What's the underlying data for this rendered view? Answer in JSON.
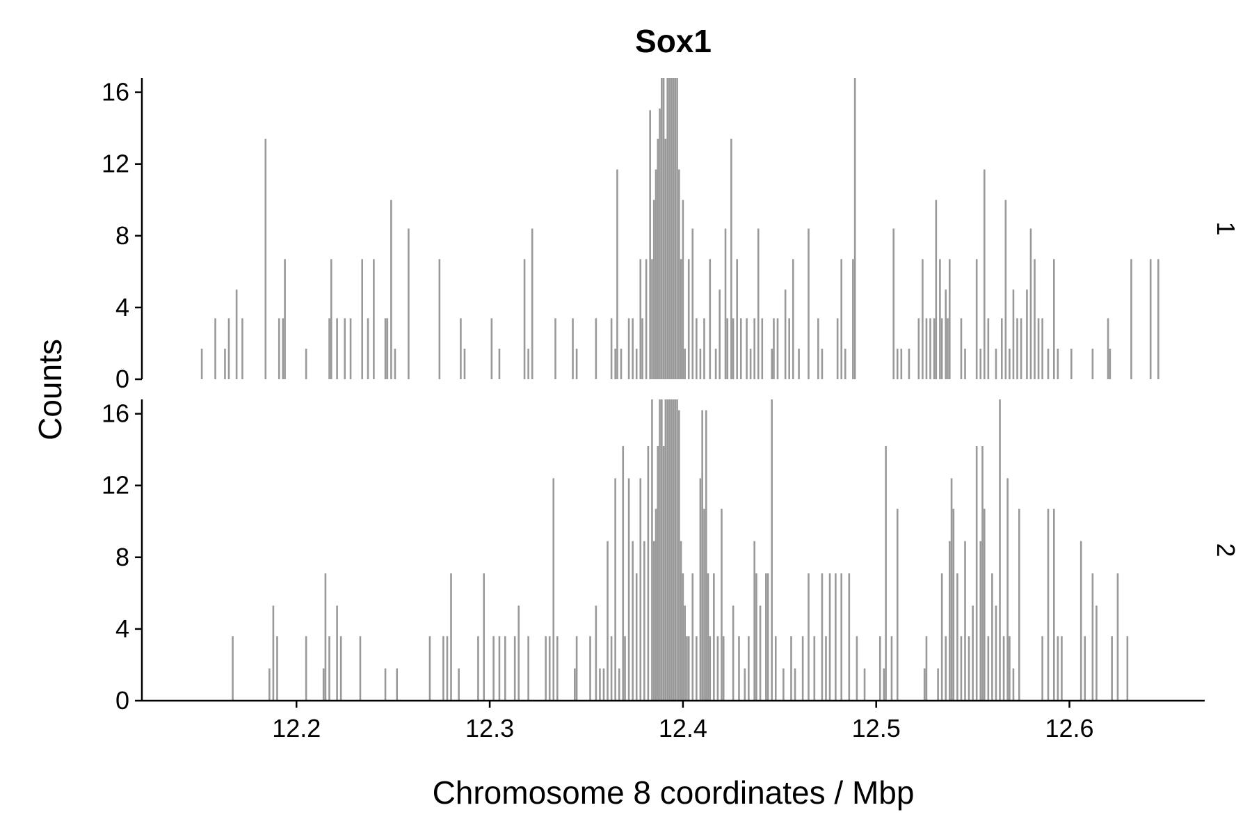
{
  "chart_data": {
    "type": "bar",
    "title": "Sox1",
    "xlabel": "Chromosome 8 coordinates / Mbp",
    "ylabel": "Counts",
    "xlim": [
      12.12,
      12.67
    ],
    "ylim": [
      0,
      16.8
    ],
    "x_ticks": [
      "12.2",
      "12.3",
      "12.4",
      "12.5",
      "12.6"
    ],
    "x_tick_values": [
      12.2,
      12.3,
      12.4,
      12.5,
      12.6
    ],
    "y_ticks": [
      "0",
      "4",
      "8",
      "12",
      "16"
    ],
    "y_tick_values": [
      0,
      4,
      8,
      12,
      16
    ],
    "bar_color": "#999999",
    "grid": false,
    "facets": [
      {
        "label": "1",
        "points": [
          [
            12.151,
            1.7
          ],
          [
            12.158,
            3.4
          ],
          [
            12.163,
            1.7
          ],
          [
            12.165,
            3.4
          ],
          [
            12.169,
            5.0
          ],
          [
            12.172,
            3.4
          ],
          [
            12.184,
            13.4
          ],
          [
            12.191,
            3.4
          ],
          [
            12.193,
            3.4
          ],
          [
            12.194,
            6.7
          ],
          [
            12.205,
            1.7
          ],
          [
            12.217,
            3.4
          ],
          [
            12.218,
            6.7
          ],
          [
            12.221,
            3.4
          ],
          [
            12.225,
            3.4
          ],
          [
            12.228,
            3.4
          ],
          [
            12.234,
            6.7
          ],
          [
            12.237,
            3.4
          ],
          [
            12.24,
            6.7
          ],
          [
            12.246,
            3.4
          ],
          [
            12.247,
            3.4
          ],
          [
            12.249,
            10.0
          ],
          [
            12.251,
            1.7
          ],
          [
            12.258,
            8.4
          ],
          [
            12.274,
            6.7
          ],
          [
            12.285,
            3.4
          ],
          [
            12.287,
            1.7
          ],
          [
            12.301,
            3.4
          ],
          [
            12.305,
            1.7
          ],
          [
            12.318,
            6.7
          ],
          [
            12.32,
            1.7
          ],
          [
            12.322,
            8.4
          ],
          [
            12.334,
            3.4
          ],
          [
            12.343,
            3.4
          ],
          [
            12.345,
            1.7
          ],
          [
            12.355,
            3.4
          ],
          [
            12.363,
            3.4
          ],
          [
            12.365,
            1.7
          ],
          [
            12.366,
            11.7
          ],
          [
            12.368,
            1.7
          ],
          [
            12.372,
            3.4
          ],
          [
            12.374,
            3.4
          ],
          [
            12.376,
            1.7
          ],
          [
            12.378,
            6.7
          ],
          [
            12.379,
            3.4
          ],
          [
            12.381,
            6.7
          ],
          [
            12.383,
            15.0
          ],
          [
            12.384,
            6.7
          ],
          [
            12.385,
            10.0
          ],
          [
            12.386,
            11.7
          ],
          [
            12.387,
            13.4
          ],
          [
            12.388,
            15.1
          ],
          [
            12.389,
            16.8
          ],
          [
            12.39,
            16.8
          ],
          [
            12.391,
            13.4
          ],
          [
            12.392,
            16.8
          ],
          [
            12.393,
            16.8
          ],
          [
            12.394,
            16.8
          ],
          [
            12.395,
            16.8
          ],
          [
            12.396,
            16.8
          ],
          [
            12.397,
            16.8
          ],
          [
            12.398,
            11.7
          ],
          [
            12.399,
            6.7
          ],
          [
            12.4,
            10.0
          ],
          [
            12.401,
            1.7
          ],
          [
            12.403,
            6.7
          ],
          [
            12.405,
            8.4
          ],
          [
            12.407,
            3.4
          ],
          [
            12.409,
            1.7
          ],
          [
            12.411,
            3.4
          ],
          [
            12.414,
            6.7
          ],
          [
            12.417,
            1.7
          ],
          [
            12.419,
            5.0
          ],
          [
            12.422,
            8.4
          ],
          [
            12.423,
            3.4
          ],
          [
            12.425,
            13.4
          ],
          [
            12.426,
            3.4
          ],
          [
            12.428,
            6.7
          ],
          [
            12.43,
            3.4
          ],
          [
            12.433,
            3.4
          ],
          [
            12.435,
            1.7
          ],
          [
            12.437,
            3.4
          ],
          [
            12.439,
            8.4
          ],
          [
            12.441,
            3.4
          ],
          [
            12.446,
            1.7
          ],
          [
            12.447,
            3.4
          ],
          [
            12.449,
            3.4
          ],
          [
            12.453,
            5.0
          ],
          [
            12.455,
            3.4
          ],
          [
            12.457,
            6.7
          ],
          [
            12.46,
            1.7
          ],
          [
            12.465,
            8.4
          ],
          [
            12.47,
            3.4
          ],
          [
            12.472,
            1.7
          ],
          [
            12.48,
            3.4
          ],
          [
            12.482,
            6.7
          ],
          [
            12.484,
            1.7
          ],
          [
            12.488,
            6.7
          ],
          [
            12.489,
            16.8
          ],
          [
            12.509,
            8.4
          ],
          [
            12.511,
            1.7
          ],
          [
            12.513,
            1.7
          ],
          [
            12.517,
            1.7
          ],
          [
            12.522,
            3.4
          ],
          [
            12.524,
            6.7
          ],
          [
            12.526,
            3.4
          ],
          [
            12.528,
            3.4
          ],
          [
            12.53,
            3.4
          ],
          [
            12.531,
            10.0
          ],
          [
            12.533,
            6.7
          ],
          [
            12.534,
            3.4
          ],
          [
            12.536,
            5.0
          ],
          [
            12.537,
            3.4
          ],
          [
            12.538,
            6.7
          ],
          [
            12.544,
            3.4
          ],
          [
            12.546,
            1.7
          ],
          [
            12.552,
            6.7
          ],
          [
            12.554,
            1.7
          ],
          [
            12.556,
            11.7
          ],
          [
            12.558,
            3.4
          ],
          [
            12.562,
            1.7
          ],
          [
            12.565,
            3.4
          ],
          [
            12.567,
            10.0
          ],
          [
            12.569,
            1.7
          ],
          [
            12.571,
            5.0
          ],
          [
            12.573,
            3.4
          ],
          [
            12.575,
            3.4
          ],
          [
            12.578,
            5.0
          ],
          [
            12.58,
            8.4
          ],
          [
            12.582,
            6.7
          ],
          [
            12.584,
            3.4
          ],
          [
            12.586,
            3.4
          ],
          [
            12.589,
            1.7
          ],
          [
            12.592,
            6.7
          ],
          [
            12.594,
            1.7
          ],
          [
            12.601,
            1.7
          ],
          [
            12.612,
            1.7
          ],
          [
            12.62,
            3.4
          ],
          [
            12.621,
            1.7
          ],
          [
            12.632,
            6.7
          ],
          [
            12.642,
            6.7
          ],
          [
            12.646,
            6.7
          ]
        ]
      },
      {
        "label": "2",
        "points": [
          [
            12.167,
            3.6
          ],
          [
            12.186,
            1.8
          ],
          [
            12.188,
            5.3
          ],
          [
            12.19,
            3.6
          ],
          [
            12.205,
            3.6
          ],
          [
            12.214,
            1.8
          ],
          [
            12.215,
            7.1
          ],
          [
            12.217,
            3.6
          ],
          [
            12.221,
            5.3
          ],
          [
            12.223,
            3.6
          ],
          [
            12.233,
            3.6
          ],
          [
            12.246,
            1.8
          ],
          [
            12.252,
            1.8
          ],
          [
            12.269,
            3.6
          ],
          [
            12.276,
            3.6
          ],
          [
            12.278,
            3.6
          ],
          [
            12.28,
            7.1
          ],
          [
            12.284,
            1.8
          ],
          [
            12.294,
            3.6
          ],
          [
            12.297,
            7.1
          ],
          [
            12.302,
            3.6
          ],
          [
            12.305,
            3.6
          ],
          [
            12.308,
            3.6
          ],
          [
            12.313,
            3.6
          ],
          [
            12.315,
            5.3
          ],
          [
            12.32,
            3.6
          ],
          [
            12.329,
            3.6
          ],
          [
            12.331,
            3.6
          ],
          [
            12.333,
            12.4
          ],
          [
            12.335,
            3.6
          ],
          [
            12.344,
            1.8
          ],
          [
            12.345,
            3.6
          ],
          [
            12.352,
            3.6
          ],
          [
            12.355,
            5.3
          ],
          [
            12.357,
            1.8
          ],
          [
            12.359,
            1.8
          ],
          [
            12.361,
            8.9
          ],
          [
            12.363,
            3.6
          ],
          [
            12.365,
            12.4
          ],
          [
            12.367,
            1.8
          ],
          [
            12.369,
            14.2
          ],
          [
            12.37,
            3.6
          ],
          [
            12.372,
            12.4
          ],
          [
            12.374,
            8.9
          ],
          [
            12.376,
            7.1
          ],
          [
            12.378,
            12.4
          ],
          [
            12.38,
            8.9
          ],
          [
            12.382,
            14.2
          ],
          [
            12.384,
            16.8
          ],
          [
            12.385,
            8.9
          ],
          [
            12.386,
            10.7
          ],
          [
            12.387,
            14.2
          ],
          [
            12.388,
            16.8
          ],
          [
            12.389,
            16.8
          ],
          [
            12.39,
            14.2
          ],
          [
            12.391,
            16.8
          ],
          [
            12.392,
            16.8
          ],
          [
            12.393,
            16.8
          ],
          [
            12.394,
            16.8
          ],
          [
            12.395,
            16.8
          ],
          [
            12.396,
            16.8
          ],
          [
            12.397,
            16.8
          ],
          [
            12.398,
            16.2
          ],
          [
            12.399,
            8.9
          ],
          [
            12.4,
            7.1
          ],
          [
            12.401,
            5.3
          ],
          [
            12.402,
            3.6
          ],
          [
            12.403,
            3.6
          ],
          [
            12.405,
            7.1
          ],
          [
            12.407,
            3.6
          ],
          [
            12.409,
            12.4
          ],
          [
            12.41,
            16.2
          ],
          [
            12.411,
            10.7
          ],
          [
            12.412,
            16.2
          ],
          [
            12.413,
            7.1
          ],
          [
            12.414,
            3.6
          ],
          [
            12.416,
            7.1
          ],
          [
            12.418,
            3.6
          ],
          [
            12.42,
            10.7
          ],
          [
            12.421,
            3.6
          ],
          [
            12.426,
            5.3
          ],
          [
            12.429,
            3.6
          ],
          [
            12.432,
            1.8
          ],
          [
            12.434,
            3.6
          ],
          [
            12.437,
            8.9
          ],
          [
            12.438,
            7.1
          ],
          [
            12.44,
            5.3
          ],
          [
            12.443,
            7.1
          ],
          [
            12.444,
            7.1
          ],
          [
            12.446,
            16.8
          ],
          [
            12.448,
            3.6
          ],
          [
            12.452,
            1.8
          ],
          [
            12.456,
            3.6
          ],
          [
            12.458,
            1.8
          ],
          [
            12.462,
            3.6
          ],
          [
            12.465,
            7.1
          ],
          [
            12.468,
            3.6
          ],
          [
            12.472,
            7.1
          ],
          [
            12.474,
            3.6
          ],
          [
            12.476,
            7.1
          ],
          [
            12.479,
            7.1
          ],
          [
            12.482,
            7.1
          ],
          [
            12.486,
            7.1
          ],
          [
            12.49,
            3.6
          ],
          [
            12.494,
            1.8
          ],
          [
            12.502,
            3.6
          ],
          [
            12.504,
            1.8
          ],
          [
            12.505,
            14.2
          ],
          [
            12.508,
            3.6
          ],
          [
            12.511,
            10.7
          ],
          [
            12.525,
            1.8
          ],
          [
            12.526,
            3.6
          ],
          [
            12.532,
            1.8
          ],
          [
            12.534,
            7.1
          ],
          [
            12.536,
            3.6
          ],
          [
            12.538,
            8.9
          ],
          [
            12.539,
            12.4
          ],
          [
            12.54,
            10.7
          ],
          [
            12.542,
            7.1
          ],
          [
            12.544,
            3.6
          ],
          [
            12.546,
            8.9
          ],
          [
            12.548,
            3.6
          ],
          [
            12.55,
            5.3
          ],
          [
            12.552,
            14.2
          ],
          [
            12.554,
            8.9
          ],
          [
            12.555,
            14.2
          ],
          [
            12.556,
            10.7
          ],
          [
            12.558,
            3.6
          ],
          [
            12.56,
            7.1
          ],
          [
            12.562,
            5.3
          ],
          [
            12.564,
            16.8
          ],
          [
            12.566,
            3.6
          ],
          [
            12.568,
            12.4
          ],
          [
            12.569,
            3.6
          ],
          [
            12.571,
            1.8
          ],
          [
            12.574,
            10.7
          ],
          [
            12.586,
            3.6
          ],
          [
            12.589,
            10.7
          ],
          [
            12.592,
            10.7
          ],
          [
            12.594,
            3.6
          ],
          [
            12.596,
            3.6
          ],
          [
            12.606,
            8.9
          ],
          [
            12.608,
            3.6
          ],
          [
            12.612,
            7.1
          ],
          [
            12.614,
            5.3
          ],
          [
            12.622,
            3.6
          ],
          [
            12.625,
            7.1
          ],
          [
            12.63,
            3.6
          ]
        ]
      }
    ]
  }
}
